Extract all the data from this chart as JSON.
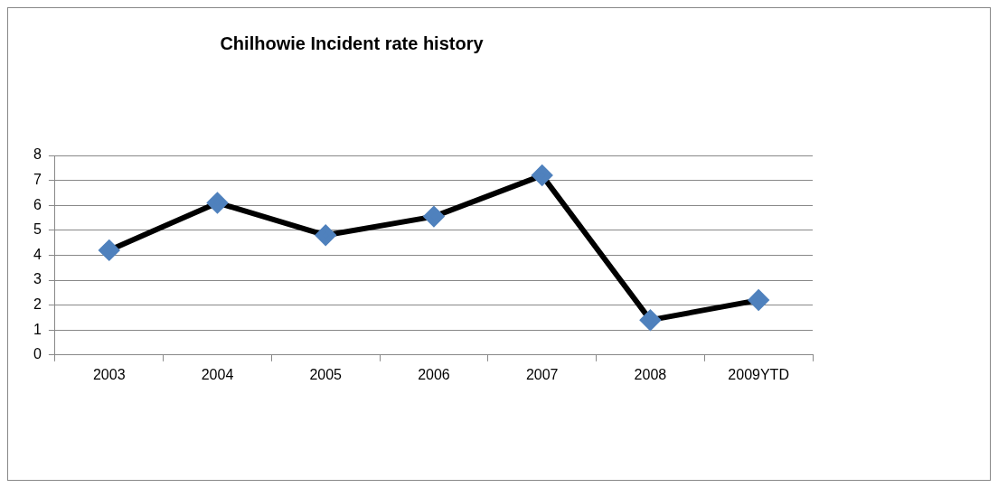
{
  "chart_data": {
    "type": "line",
    "title": "Chilhowie Incident rate history",
    "categories": [
      "2003",
      "2004",
      "2005",
      "2006",
      "2007",
      "2008",
      "2009YTD"
    ],
    "values": [
      4.2,
      6.1,
      4.8,
      5.55,
      7.2,
      1.4,
      2.2
    ],
    "color": "#000000",
    "colors": [
      "#4f81bd",
      "#4f81bd",
      "#4f81bd",
      "#4f81bd",
      "#4f81bd",
      "#4f81bd",
      "#4f81bd"
    ],
    "marker": "diamond",
    "line_style": "solid",
    "ylim": [
      0,
      8
    ],
    "yticks": [
      0,
      1,
      2,
      3,
      4,
      5,
      6,
      7,
      8
    ],
    "grid": "y",
    "legend": false
  }
}
